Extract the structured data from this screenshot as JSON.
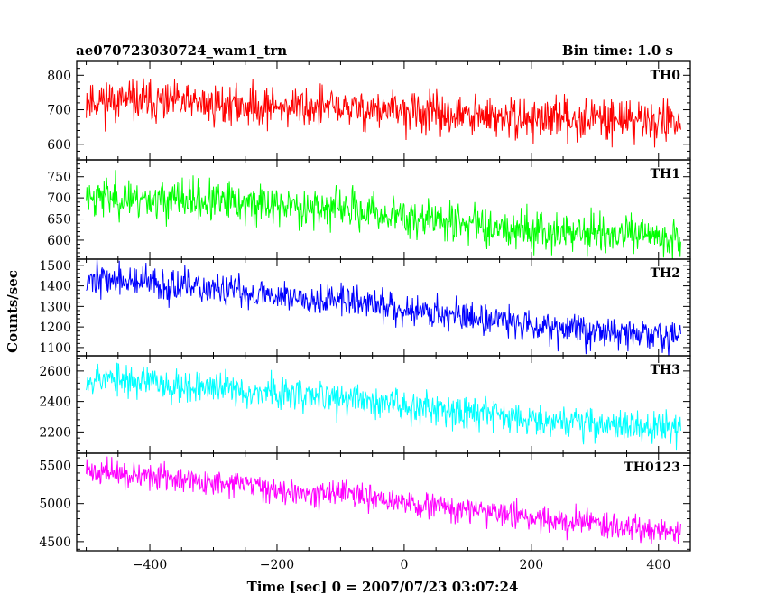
{
  "header": {
    "left_title": "ae070723030724_wam1_trn",
    "right_title": "Bin time: 1.0 s"
  },
  "chart_data": {
    "type": "line",
    "title": "ae070723030724_wam1_trn",
    "subtitle": "Bin time: 1.0 s",
    "xlabel": "Time [sec] 0 = 2007/07/23 03:07:24",
    "ylabel": "Counts/sec",
    "xlim": [
      -515,
      450
    ],
    "x_range_data": [
      -500,
      435
    ],
    "x_ticks": [
      -400,
      -200,
      0,
      200,
      400
    ],
    "x_tick_labels": [
      "−400",
      "−200",
      "0",
      "200",
      "400"
    ],
    "grid": false,
    "panels": [
      {
        "name": "TH0",
        "color": "#ff0000",
        "ylim": [
          555,
          840
        ],
        "y_ticks": [
          600,
          700,
          800
        ],
        "y_tick_labels": [
          "600",
          "700",
          "800"
        ],
        "trend": [
          [
            -500,
            730
          ],
          [
            -300,
            715
          ],
          [
            -100,
            705
          ],
          [
            0,
            695
          ],
          [
            100,
            680
          ],
          [
            200,
            672
          ],
          [
            300,
            678
          ],
          [
            435,
            665
          ]
        ],
        "noise": 30,
        "seed": 11
      },
      {
        "name": "TH1",
        "color": "#00ff00",
        "ylim": [
          555,
          790
        ],
        "y_ticks": [
          600,
          650,
          700,
          750
        ],
        "y_tick_labels": [
          "600",
          "650",
          "700",
          "750"
        ],
        "trend": [
          [
            -500,
            705
          ],
          [
            -300,
            690
          ],
          [
            -100,
            675
          ],
          [
            0,
            655
          ],
          [
            100,
            640
          ],
          [
            200,
            625
          ],
          [
            300,
            615
          ],
          [
            435,
            605
          ]
        ],
        "noise": 24,
        "seed": 23
      },
      {
        "name": "TH2",
        "color": "#0000ff",
        "ylim": [
          1060,
          1530
        ],
        "y_ticks": [
          1100,
          1200,
          1300,
          1400,
          1500
        ],
        "y_tick_labels": [
          "1100",
          "1200",
          "1300",
          "1400",
          "1500"
        ],
        "trend": [
          [
            -500,
            1440
          ],
          [
            -300,
            1380
          ],
          [
            -100,
            1330
          ],
          [
            0,
            1290
          ],
          [
            100,
            1250
          ],
          [
            200,
            1215
          ],
          [
            300,
            1180
          ],
          [
            435,
            1150
          ]
        ],
        "noise": 40,
        "seed": 37
      },
      {
        "name": "TH3",
        "color": "#00ffff",
        "ylim": [
          2060,
          2700
        ],
        "y_ticks": [
          2200,
          2400,
          2600
        ],
        "y_tick_labels": [
          "2200",
          "2400",
          "2600"
        ],
        "trend": [
          [
            -500,
            2560
          ],
          [
            -300,
            2490
          ],
          [
            -100,
            2420
          ],
          [
            0,
            2380
          ],
          [
            100,
            2340
          ],
          [
            200,
            2290
          ],
          [
            300,
            2255
          ],
          [
            435,
            2220
          ]
        ],
        "noise": 55,
        "seed": 53
      },
      {
        "name": "TH0123",
        "color": "#ff00ff",
        "ylim": [
          4380,
          5660
        ],
        "y_ticks": [
          4500,
          5000,
          5500
        ],
        "y_tick_labels": [
          "4500",
          "5000",
          "5500"
        ],
        "trend": [
          [
            -500,
            5430
          ],
          [
            -300,
            5270
          ],
          [
            -100,
            5120
          ],
          [
            0,
            5000
          ],
          [
            100,
            4920
          ],
          [
            200,
            4820
          ],
          [
            300,
            4740
          ],
          [
            435,
            4630
          ]
        ],
        "noise": 85,
        "seed": 71
      }
    ]
  }
}
